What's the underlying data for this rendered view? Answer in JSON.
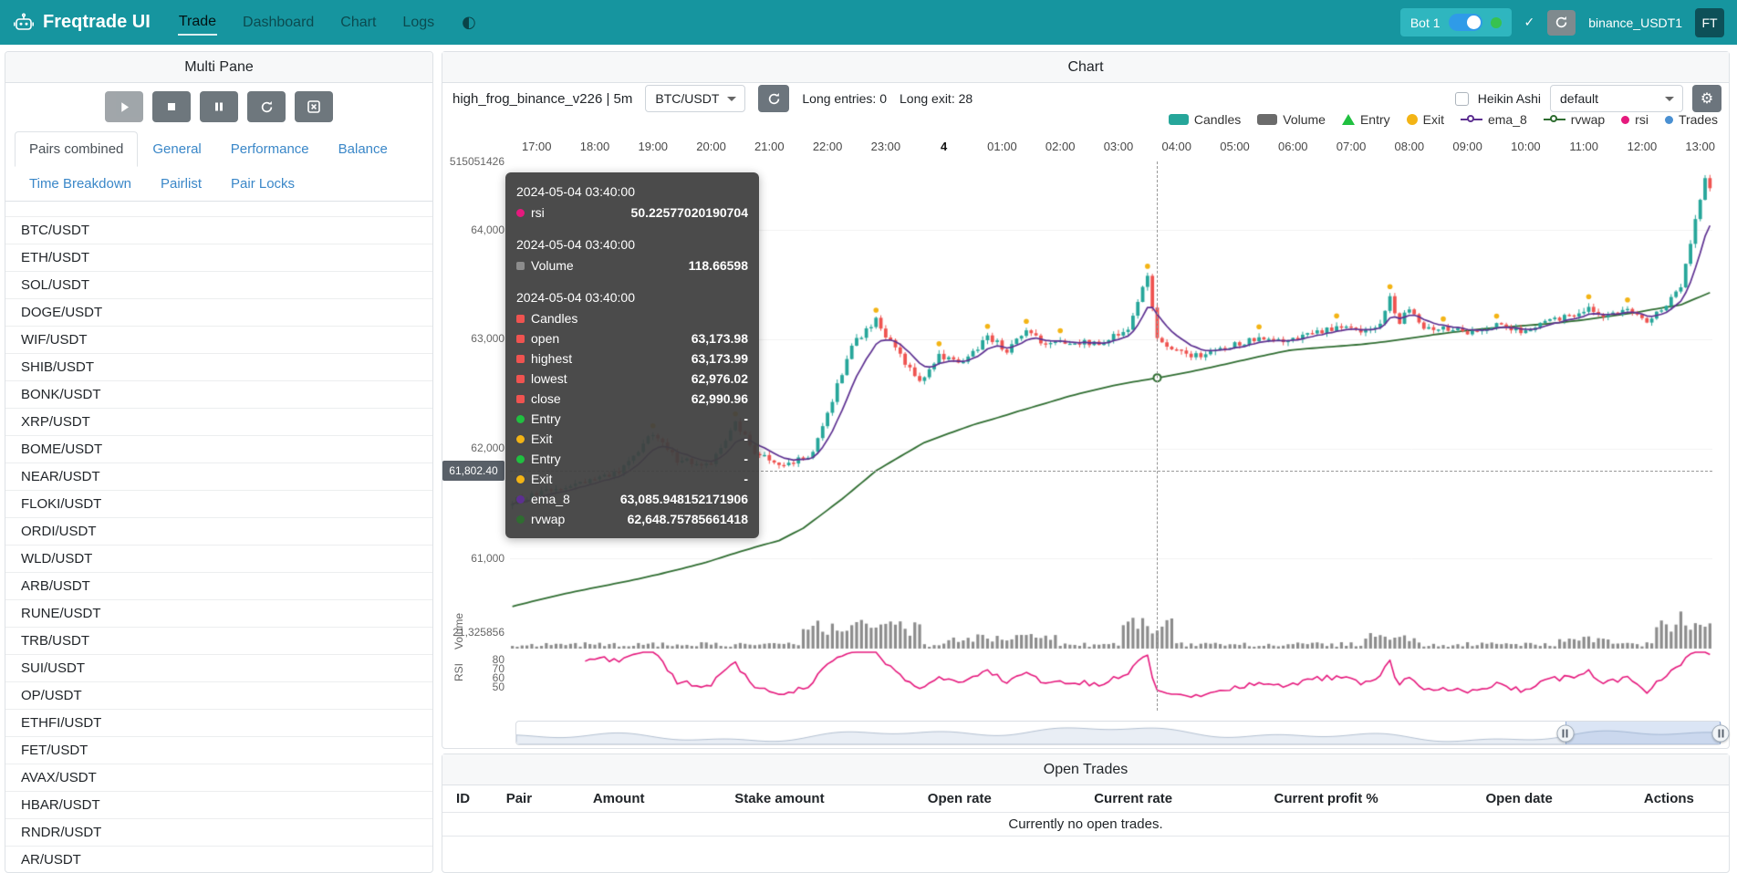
{
  "navbar": {
    "brand": "Freqtrade UI",
    "items": [
      {
        "label": "Trade",
        "active": true
      },
      {
        "label": "Dashboard",
        "active": false
      },
      {
        "label": "Chart",
        "active": false
      },
      {
        "label": "Logs",
        "active": false
      }
    ],
    "bot_name": "Bot 1",
    "bot_online": true,
    "exchange_label": "binance_USDT1",
    "avatar": "FT",
    "icons": [
      "robot-logo-icon",
      "theme-toggle-icon",
      "check-icon",
      "reload-icon"
    ]
  },
  "left_panel": {
    "title": "Multi Pane",
    "control_icons": [
      "play-icon",
      "stop-icon",
      "pause-icon",
      "reload-icon",
      "cancel-open-orders-icon"
    ],
    "tabs": [
      "Pairs combined",
      "General",
      "Performance",
      "Balance",
      "Time Breakdown",
      "Pairlist",
      "Pair Locks"
    ],
    "active_tab": "Pairs combined",
    "pairs": [
      "BTC/USDT",
      "ETH/USDT",
      "SOL/USDT",
      "DOGE/USDT",
      "WIF/USDT",
      "SHIB/USDT",
      "BONK/USDT",
      "XRP/USDT",
      "BOME/USDT",
      "NEAR/USDT",
      "FLOKI/USDT",
      "ORDI/USDT",
      "WLD/USDT",
      "ARB/USDT",
      "RUNE/USDT",
      "TRB/USDT",
      "SUI/USDT",
      "OP/USDT",
      "ETHFI/USDT",
      "FET/USDT",
      "AVAX/USDT",
      "HBAR/USDT",
      "RNDR/USDT",
      "AR/USDT"
    ]
  },
  "chart_panel": {
    "title": "Chart",
    "strategy_label": "high_frog_binance_v226 | 5m",
    "pair_select": "BTC/USDT",
    "entries_label": "Long entries: 0",
    "exits_label": "Long exit: 28",
    "heikin_ashi_label": "Heikin Ashi",
    "plot_config_select": "default",
    "price_tag": "61,802.40",
    "legend": [
      {
        "label": "Candles",
        "shape": "rect",
        "color": "#26a69a"
      },
      {
        "label": "Volume",
        "shape": "rect",
        "color": "#6b6b6b"
      },
      {
        "label": "Entry",
        "shape": "triangle",
        "color": "#20c040"
      },
      {
        "label": "Exit",
        "shape": "circle",
        "color": "#f3b415"
      },
      {
        "label": "ema_8",
        "shape": "line-circle",
        "color": "#5d3091"
      },
      {
        "label": "rvwap",
        "shape": "line-circle",
        "color": "#2f6d31"
      },
      {
        "label": "rsi",
        "shape": "dot",
        "color": "#e5197d"
      },
      {
        "label": "Trades",
        "shape": "dot",
        "color": "#4a90d2"
      }
    ],
    "tooltip": {
      "groups": [
        {
          "time": "2024-05-04 03:40:00",
          "rows": [
            {
              "shape": "circle",
              "color": "#e5197d",
              "label": "rsi",
              "value": "50.22577020190704"
            }
          ]
        },
        {
          "time": "2024-05-04 03:40:00",
          "rows": [
            {
              "shape": "square",
              "color": "#8c8c8c",
              "label": "Volume",
              "value": "118.66598"
            }
          ]
        },
        {
          "time": "2024-05-04 03:40:00",
          "rows": [
            {
              "shape": "square",
              "color": "#ef5350",
              "label": "Candles",
              "value": ""
            },
            {
              "shape": "square",
              "color": "#ef5350",
              "label": "open",
              "value": "63,173.98"
            },
            {
              "shape": "square",
              "color": "#ef5350",
              "label": "highest",
              "value": "63,173.99"
            },
            {
              "shape": "square",
              "color": "#ef5350",
              "label": "lowest",
              "value": "62,976.02"
            },
            {
              "shape": "square",
              "color": "#ef5350",
              "label": "close",
              "value": "62,990.96"
            },
            {
              "shape": "circle",
              "color": "#20c040",
              "label": "Entry",
              "value": "-"
            },
            {
              "shape": "circle",
              "color": "#f3b415",
              "label": "Exit",
              "value": "-"
            },
            {
              "shape": "circle",
              "color": "#20c040",
              "label": "Entry",
              "value": "-"
            },
            {
              "shape": "circle",
              "color": "#f3b415",
              "label": "Exit",
              "value": "-"
            },
            {
              "shape": "circle",
              "color": "#5d3091",
              "label": "ema_8",
              "value": "63,085.948152171906"
            },
            {
              "shape": "circle",
              "color": "#2f6d31",
              "label": "rvwap",
              "value": "62,648.75785661418"
            }
          ]
        }
      ]
    }
  },
  "chart_data": {
    "type": "candlestick",
    "pair": "BTC/USDT",
    "timeframe": "5m",
    "x_ticks": [
      "17:00",
      "18:00",
      "19:00",
      "20:00",
      "21:00",
      "22:00",
      "23:00",
      "4",
      "01:00",
      "02:00",
      "03:00",
      "04:00",
      "05:00",
      "06:00",
      "07:00",
      "08:00",
      "09:00",
      "10:00",
      "11:00",
      "12:00",
      "13:00"
    ],
    "day_tick": "4",
    "y_axis": {
      "top_label": "515051426",
      "price_ticks": [
        "64,000",
        "63,000",
        "62,000",
        "61,000"
      ],
      "volume_label": "21,325856",
      "volume_name": "Volume",
      "rsi_name": "RSI",
      "rsi_ticks": [
        "80",
        "70",
        "60",
        "50"
      ]
    },
    "price_range": [
      60592,
      64625
    ],
    "n_candles": 248,
    "candles_per_hour": 12,
    "first_tick_index": 5,
    "price_keypoints": [
      [
        0,
        61520
      ],
      [
        10,
        61640
      ],
      [
        22,
        61780
      ],
      [
        29,
        62140
      ],
      [
        34,
        61900
      ],
      [
        41,
        61860
      ],
      [
        46,
        62230
      ],
      [
        50,
        61980
      ],
      [
        56,
        61850
      ],
      [
        62,
        61950
      ],
      [
        66,
        62450
      ],
      [
        70,
        62950
      ],
      [
        75,
        63170
      ],
      [
        79,
        62900
      ],
      [
        84,
        62620
      ],
      [
        88,
        62850
      ],
      [
        93,
        62780
      ],
      [
        98,
        63030
      ],
      [
        102,
        62900
      ],
      [
        106,
        63080
      ],
      [
        110,
        62950
      ],
      [
        116,
        62980
      ],
      [
        121,
        62950
      ],
      [
        127,
        63100
      ],
      [
        131,
        63600
      ],
      [
        133,
        62990
      ],
      [
        137,
        62880
      ],
      [
        141,
        62850
      ],
      [
        147,
        62920
      ],
      [
        153,
        63000
      ],
      [
        159,
        62980
      ],
      [
        165,
        63060
      ],
      [
        171,
        63120
      ],
      [
        175,
        63060
      ],
      [
        179,
        63150
      ],
      [
        181,
        63380
      ],
      [
        183,
        63150
      ],
      [
        185,
        63300
      ],
      [
        188,
        63120
      ],
      [
        193,
        63100
      ],
      [
        198,
        63060
      ],
      [
        203,
        63140
      ],
      [
        208,
        63080
      ],
      [
        213,
        63160
      ],
      [
        218,
        63220
      ],
      [
        222,
        63280
      ],
      [
        226,
        63210
      ],
      [
        230,
        63260
      ],
      [
        234,
        63180
      ],
      [
        238,
        63320
      ],
      [
        241,
        63500
      ],
      [
        243,
        63900
      ],
      [
        245,
        64300
      ],
      [
        246,
        64500
      ],
      [
        247,
        64380
      ]
    ],
    "rvwap_keypoints": [
      [
        0,
        60560
      ],
      [
        20,
        60760
      ],
      [
        40,
        60960
      ],
      [
        55,
        61160
      ],
      [
        60,
        61280
      ],
      [
        68,
        61550
      ],
      [
        75,
        61800
      ],
      [
        85,
        62050
      ],
      [
        95,
        62220
      ],
      [
        105,
        62360
      ],
      [
        115,
        62480
      ],
      [
        125,
        62580
      ],
      [
        133,
        62649
      ],
      [
        145,
        62760
      ],
      [
        160,
        62890
      ],
      [
        175,
        62960
      ],
      [
        190,
        63040
      ],
      [
        205,
        63110
      ],
      [
        220,
        63180
      ],
      [
        232,
        63240
      ],
      [
        241,
        63310
      ],
      [
        247,
        63430
      ]
    ],
    "volume_humps": [
      {
        "from": 60,
        "to": 84,
        "amp": 26
      },
      {
        "from": 90,
        "to": 112,
        "amp": 10
      },
      {
        "from": 126,
        "to": 136,
        "amp": 34
      },
      {
        "from": 176,
        "to": 186,
        "amp": 12
      },
      {
        "from": 216,
        "to": 226,
        "amp": 8
      },
      {
        "from": 236,
        "to": 247,
        "amp": 38
      }
    ],
    "exit_marker_count": 28,
    "crosshair": {
      "index": 133,
      "time": "2024-05-04 03:40:00",
      "price_label": "61,802.40",
      "rsi": "50.22577020190704",
      "volume": "118.66598",
      "open": "63,173.98",
      "highest": "63,173.99",
      "lowest": "62,976.02",
      "close": "62,990.96",
      "ema_8": "63,085.948152171906",
      "rvwap": "62,648.75785661418"
    },
    "navigator": {
      "selection_start_pct": 87.1,
      "selection_end_pct": 100
    }
  },
  "open_trades": {
    "title": "Open Trades",
    "columns": [
      "ID",
      "Pair",
      "Amount",
      "Stake amount",
      "Open rate",
      "Current rate",
      "Current profit %",
      "Open date",
      "Actions"
    ],
    "empty_message": "Currently no open trades."
  },
  "colors": {
    "navbar": "#16959f",
    "up": "#26a69a",
    "down": "#ef5350",
    "volume_bar": "#8c8c8c",
    "ema_8": "#5d3091",
    "rvwap": "#2f6d31",
    "rsi": "#e5197d",
    "entry": "#20c040",
    "exit": "#f3b415",
    "trades": "#4a90d2",
    "crosshair": "#999999"
  }
}
